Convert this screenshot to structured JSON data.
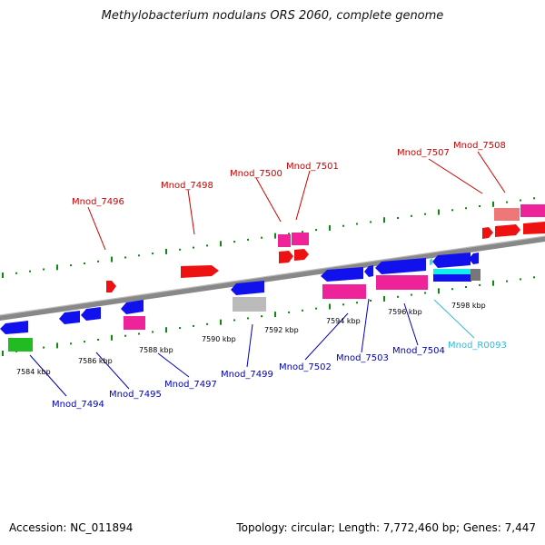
{
  "title": "Methylobacterium nodulans ORS 2060, complete genome",
  "footer": {
    "accession": "Accession: NC_011894",
    "topology": "Topology: circular; Length: 7,772,460 bp; Genes: 7,447"
  },
  "colors": {
    "forward_label": "#cc0000",
    "reverse_label": "#0000bb",
    "rna_label": "#33bbdd",
    "gene_red": "#ee1111",
    "gene_pink": "#ee2299",
    "gene_salmon": "#ee7777",
    "gene_blue": "#1111ee",
    "gene_gray": "#bbbbbb",
    "gene_dark_gray": "#777777",
    "gene_green": "#22bb22",
    "gene_cyan": "#11eeee",
    "tick": "#118811",
    "backbone": "#888888"
  },
  "map_data": {
    "kbp_labels": [
      "7584 kbp",
      "7586 kbp",
      "7588 kbp",
      "7590 kbp",
      "7592 kbp",
      "7594 kbp",
      "7596 kbp",
      "7598 kbp"
    ],
    "forward_labels": [
      "Mnod_7496",
      "Mnod_7498",
      "Mnod_7500",
      "Mnod_7501",
      "Mnod_7507",
      "Mnod_7508"
    ],
    "reverse_labels": [
      "Mnod_7494",
      "Mnod_7495",
      "Mnod_7497",
      "Mnod_7499",
      "Mnod_7502",
      "Mnod_7503",
      "Mnod_7504"
    ],
    "rna_labels": [
      "Mnod_R0093"
    ]
  }
}
